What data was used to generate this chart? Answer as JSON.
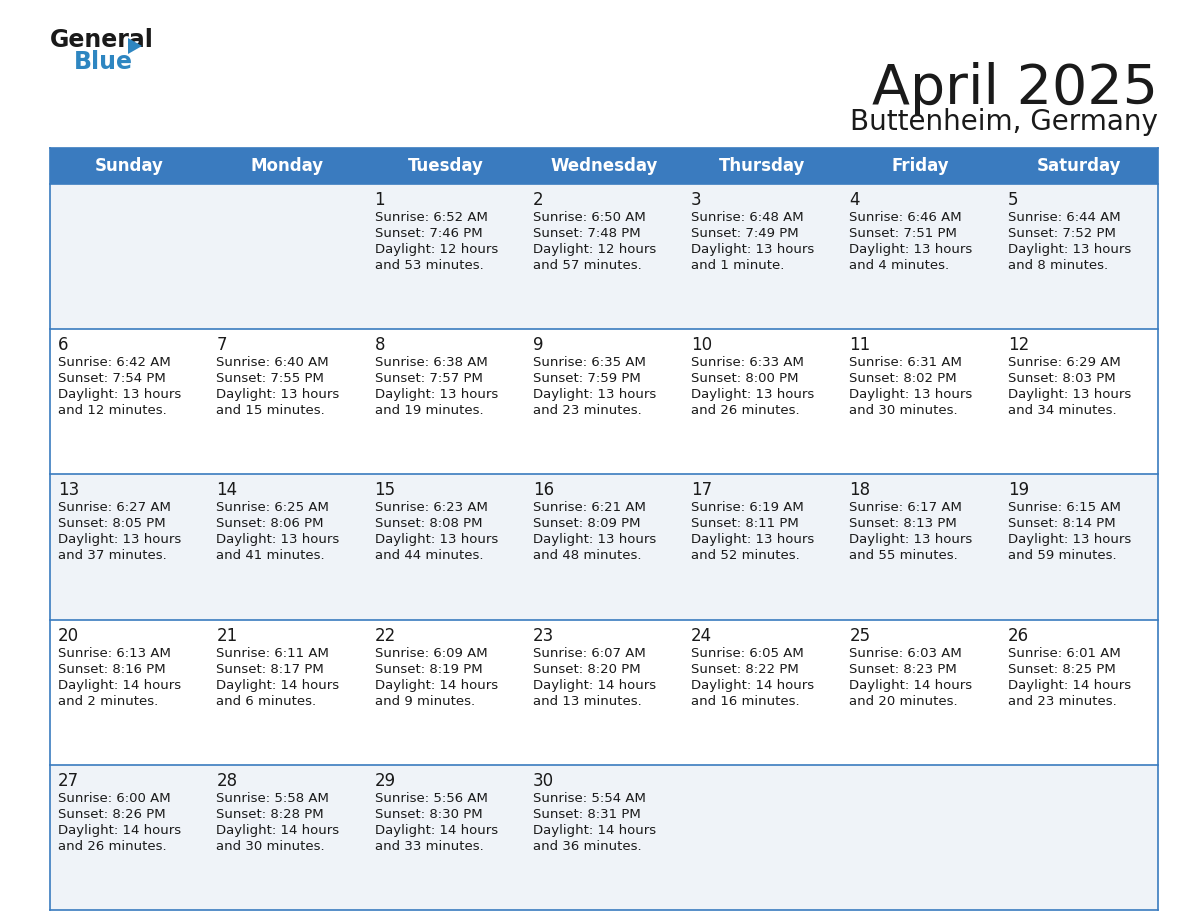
{
  "title": "April 2025",
  "subtitle": "Buttenheim, Germany",
  "header_bg_color": "#3a7bbf",
  "header_text_color": "#ffffff",
  "row_bg_colors": [
    "#eff3f8",
    "#ffffff"
  ],
  "border_color": "#3a7bbf",
  "text_color": "#1a1a1a",
  "day_names": [
    "Sunday",
    "Monday",
    "Tuesday",
    "Wednesday",
    "Thursday",
    "Friday",
    "Saturday"
  ],
  "days": [
    {
      "date": 1,
      "col": 2,
      "row": 0,
      "sunrise": "6:52 AM",
      "sunset": "7:46 PM",
      "daylight_line1": "Daylight: 12 hours",
      "daylight_line2": "and 53 minutes."
    },
    {
      "date": 2,
      "col": 3,
      "row": 0,
      "sunrise": "6:50 AM",
      "sunset": "7:48 PM",
      "daylight_line1": "Daylight: 12 hours",
      "daylight_line2": "and 57 minutes."
    },
    {
      "date": 3,
      "col": 4,
      "row": 0,
      "sunrise": "6:48 AM",
      "sunset": "7:49 PM",
      "daylight_line1": "Daylight: 13 hours",
      "daylight_line2": "and 1 minute."
    },
    {
      "date": 4,
      "col": 5,
      "row": 0,
      "sunrise": "6:46 AM",
      "sunset": "7:51 PM",
      "daylight_line1": "Daylight: 13 hours",
      "daylight_line2": "and 4 minutes."
    },
    {
      "date": 5,
      "col": 6,
      "row": 0,
      "sunrise": "6:44 AM",
      "sunset": "7:52 PM",
      "daylight_line1": "Daylight: 13 hours",
      "daylight_line2": "and 8 minutes."
    },
    {
      "date": 6,
      "col": 0,
      "row": 1,
      "sunrise": "6:42 AM",
      "sunset": "7:54 PM",
      "daylight_line1": "Daylight: 13 hours",
      "daylight_line2": "and 12 minutes."
    },
    {
      "date": 7,
      "col": 1,
      "row": 1,
      "sunrise": "6:40 AM",
      "sunset": "7:55 PM",
      "daylight_line1": "Daylight: 13 hours",
      "daylight_line2": "and 15 minutes."
    },
    {
      "date": 8,
      "col": 2,
      "row": 1,
      "sunrise": "6:38 AM",
      "sunset": "7:57 PM",
      "daylight_line1": "Daylight: 13 hours",
      "daylight_line2": "and 19 minutes."
    },
    {
      "date": 9,
      "col": 3,
      "row": 1,
      "sunrise": "6:35 AM",
      "sunset": "7:59 PM",
      "daylight_line1": "Daylight: 13 hours",
      "daylight_line2": "and 23 minutes."
    },
    {
      "date": 10,
      "col": 4,
      "row": 1,
      "sunrise": "6:33 AM",
      "sunset": "8:00 PM",
      "daylight_line1": "Daylight: 13 hours",
      "daylight_line2": "and 26 minutes."
    },
    {
      "date": 11,
      "col": 5,
      "row": 1,
      "sunrise": "6:31 AM",
      "sunset": "8:02 PM",
      "daylight_line1": "Daylight: 13 hours",
      "daylight_line2": "and 30 minutes."
    },
    {
      "date": 12,
      "col": 6,
      "row": 1,
      "sunrise": "6:29 AM",
      "sunset": "8:03 PM",
      "daylight_line1": "Daylight: 13 hours",
      "daylight_line2": "and 34 minutes."
    },
    {
      "date": 13,
      "col": 0,
      "row": 2,
      "sunrise": "6:27 AM",
      "sunset": "8:05 PM",
      "daylight_line1": "Daylight: 13 hours",
      "daylight_line2": "and 37 minutes."
    },
    {
      "date": 14,
      "col": 1,
      "row": 2,
      "sunrise": "6:25 AM",
      "sunset": "8:06 PM",
      "daylight_line1": "Daylight: 13 hours",
      "daylight_line2": "and 41 minutes."
    },
    {
      "date": 15,
      "col": 2,
      "row": 2,
      "sunrise": "6:23 AM",
      "sunset": "8:08 PM",
      "daylight_line1": "Daylight: 13 hours",
      "daylight_line2": "and 44 minutes."
    },
    {
      "date": 16,
      "col": 3,
      "row": 2,
      "sunrise": "6:21 AM",
      "sunset": "8:09 PM",
      "daylight_line1": "Daylight: 13 hours",
      "daylight_line2": "and 48 minutes."
    },
    {
      "date": 17,
      "col": 4,
      "row": 2,
      "sunrise": "6:19 AM",
      "sunset": "8:11 PM",
      "daylight_line1": "Daylight: 13 hours",
      "daylight_line2": "and 52 minutes."
    },
    {
      "date": 18,
      "col": 5,
      "row": 2,
      "sunrise": "6:17 AM",
      "sunset": "8:13 PM",
      "daylight_line1": "Daylight: 13 hours",
      "daylight_line2": "and 55 minutes."
    },
    {
      "date": 19,
      "col": 6,
      "row": 2,
      "sunrise": "6:15 AM",
      "sunset": "8:14 PM",
      "daylight_line1": "Daylight: 13 hours",
      "daylight_line2": "and 59 minutes."
    },
    {
      "date": 20,
      "col": 0,
      "row": 3,
      "sunrise": "6:13 AM",
      "sunset": "8:16 PM",
      "daylight_line1": "Daylight: 14 hours",
      "daylight_line2": "and 2 minutes."
    },
    {
      "date": 21,
      "col": 1,
      "row": 3,
      "sunrise": "6:11 AM",
      "sunset": "8:17 PM",
      "daylight_line1": "Daylight: 14 hours",
      "daylight_line2": "and 6 minutes."
    },
    {
      "date": 22,
      "col": 2,
      "row": 3,
      "sunrise": "6:09 AM",
      "sunset": "8:19 PM",
      "daylight_line1": "Daylight: 14 hours",
      "daylight_line2": "and 9 minutes."
    },
    {
      "date": 23,
      "col": 3,
      "row": 3,
      "sunrise": "6:07 AM",
      "sunset": "8:20 PM",
      "daylight_line1": "Daylight: 14 hours",
      "daylight_line2": "and 13 minutes."
    },
    {
      "date": 24,
      "col": 4,
      "row": 3,
      "sunrise": "6:05 AM",
      "sunset": "8:22 PM",
      "daylight_line1": "Daylight: 14 hours",
      "daylight_line2": "and 16 minutes."
    },
    {
      "date": 25,
      "col": 5,
      "row": 3,
      "sunrise": "6:03 AM",
      "sunset": "8:23 PM",
      "daylight_line1": "Daylight: 14 hours",
      "daylight_line2": "and 20 minutes."
    },
    {
      "date": 26,
      "col": 6,
      "row": 3,
      "sunrise": "6:01 AM",
      "sunset": "8:25 PM",
      "daylight_line1": "Daylight: 14 hours",
      "daylight_line2": "and 23 minutes."
    },
    {
      "date": 27,
      "col": 0,
      "row": 4,
      "sunrise": "6:00 AM",
      "sunset": "8:26 PM",
      "daylight_line1": "Daylight: 14 hours",
      "daylight_line2": "and 26 minutes."
    },
    {
      "date": 28,
      "col": 1,
      "row": 4,
      "sunrise": "5:58 AM",
      "sunset": "8:28 PM",
      "daylight_line1": "Daylight: 14 hours",
      "daylight_line2": "and 30 minutes."
    },
    {
      "date": 29,
      "col": 2,
      "row": 4,
      "sunrise": "5:56 AM",
      "sunset": "8:30 PM",
      "daylight_line1": "Daylight: 14 hours",
      "daylight_line2": "and 33 minutes."
    },
    {
      "date": 30,
      "col": 3,
      "row": 4,
      "sunrise": "5:54 AM",
      "sunset": "8:31 PM",
      "daylight_line1": "Daylight: 14 hours",
      "daylight_line2": "and 36 minutes."
    }
  ],
  "logo_color_general": "#1a1a1a",
  "logo_color_blue": "#2e86c1",
  "logo_triangle_color": "#2e86c1",
  "title_fontsize": 40,
  "subtitle_fontsize": 20,
  "header_fontsize": 12,
  "date_fontsize": 12,
  "cell_fontsize": 9.5
}
